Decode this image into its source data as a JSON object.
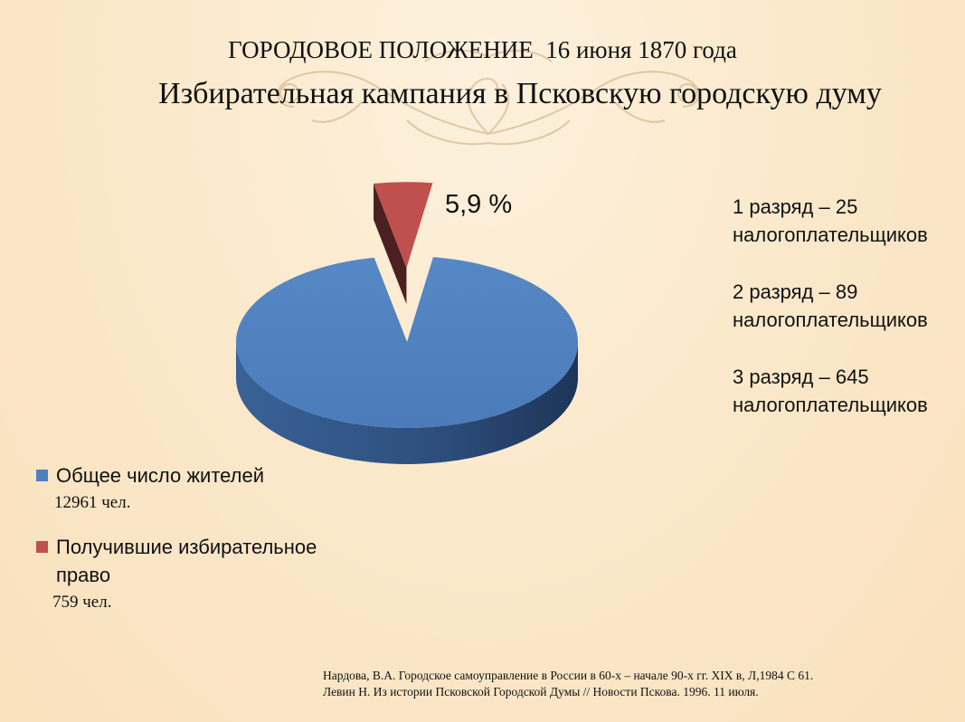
{
  "title": {
    "line1": "ГОРОДОВОЕ ПОЛОЖЕНИЕ  16 июня 1870 года",
    "line2": "Избирательная кампания  в Псковскую городскую думу"
  },
  "chart_data": {
    "type": "pie",
    "style": "3d-exploded",
    "slices": [
      {
        "label": "Общее число жителей",
        "value": 12961,
        "unit": "чел.",
        "color": "#4f81bd"
      },
      {
        "label": "Получившие избирательное право",
        "value": 759,
        "unit": "чел.",
        "color": "#c0504d"
      }
    ],
    "data_labels": [
      "5,9 %"
    ],
    "legend_position": "bottom-left"
  },
  "legend": {
    "items": [
      {
        "label": "Общее число жителей",
        "count": "12961 чел."
      },
      {
        "label": "Получившие избирательное право",
        "count": "759 чел."
      }
    ]
  },
  "ranks": [
    "1 разряд – 25 налогоплательщиков",
    "2 разряд – 89 налогоплательщиков",
    "3 разряд – 645 налогоплательщиков"
  ],
  "sources": [
    "Нардова, В.А. Городское самоуправление в России в 60-х – начале 90-х гг. XIX в, Л,1984 С 61.",
    "Левин Н. Из истории Псковской Городской Думы // Новости Пскова. 1996. 11 июля."
  ]
}
